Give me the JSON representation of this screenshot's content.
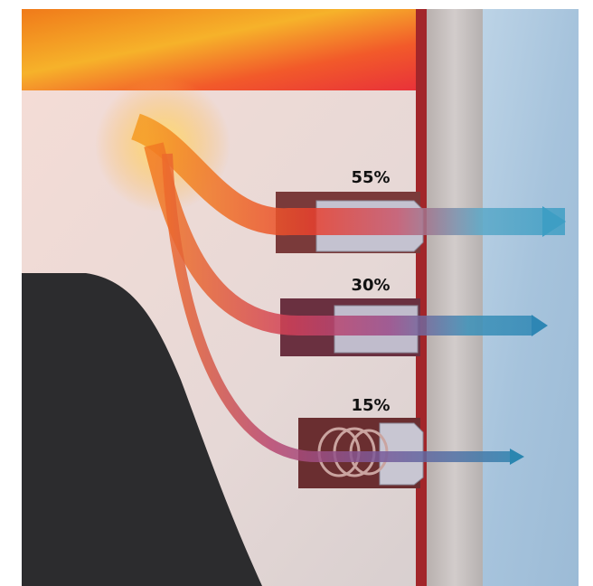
{
  "labels": [
    "55%",
    "30%",
    "15%"
  ]
}
